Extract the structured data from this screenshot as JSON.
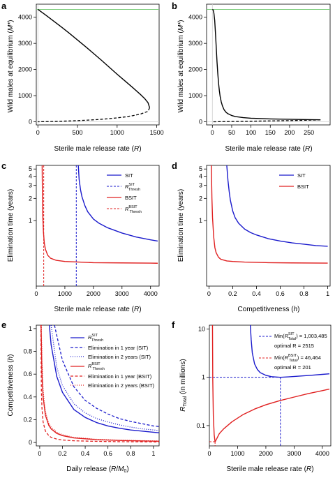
{
  "chart_data": [
    {
      "panel_label": "a",
      "type": "line",
      "xlabel": "Sterile male release rate (R)",
      "ylabel": "Wild males at equilibrium (M*)",
      "xlim": [
        -20,
        1530
      ],
      "ylim": [
        -120,
        4500
      ],
      "xticks": [
        0,
        500,
        1000,
        1500
      ],
      "yticks": [
        0,
        1000,
        2000,
        3000,
        4000
      ],
      "hline": {
        "y": 4300,
        "color": "#7ccc7c"
      },
      "series": [
        {
          "style": "solid",
          "color": "#000000",
          "x": [
            0,
            100,
            200,
            300,
            400,
            500,
            600,
            700,
            800,
            900,
            1000,
            1100,
            1200,
            1300,
            1350,
            1390,
            1410
          ],
          "y": [
            4300,
            4080,
            3850,
            3620,
            3380,
            3130,
            2880,
            2620,
            2360,
            2090,
            1820,
            1560,
            1300,
            1030,
            880,
            730,
            540
          ]
        },
        {
          "style": "dashed",
          "color": "#000000",
          "x": [
            1410,
            1390,
            1300,
            1200,
            1100,
            1000,
            900,
            800,
            700,
            600,
            500,
            400,
            300,
            200,
            100,
            0
          ],
          "y": [
            540,
            400,
            300,
            235,
            185,
            150,
            120,
            95,
            75,
            58,
            44,
            32,
            22,
            14,
            6,
            0
          ]
        }
      ]
    },
    {
      "panel_label": "b",
      "type": "line",
      "xlabel": "Sterile male release rate (R)",
      "ylabel": "Wild males at equilibrium (M*)",
      "xlim": [
        -15,
        305
      ],
      "ylim": [
        -120,
        4500
      ],
      "xticks": [
        0,
        50,
        100,
        150,
        200,
        250
      ],
      "yticks": [
        0,
        1000,
        2000,
        3000,
        4000
      ],
      "hline": {
        "y": 4300,
        "color": "#7ccc7c"
      },
      "series": [
        {
          "style": "solid",
          "color": "#000000",
          "x": [
            0,
            2,
            4,
            6,
            8,
            10,
            12,
            14,
            16,
            18,
            20,
            23,
            26,
            30,
            35,
            40,
            50,
            60,
            80,
            100,
            150,
            200,
            250,
            280
          ],
          "y": [
            4300,
            4280,
            4150,
            3880,
            3400,
            2850,
            2300,
            1850,
            1480,
            1200,
            980,
            760,
            610,
            470,
            370,
            310,
            240,
            200,
            160,
            135,
            110,
            95,
            82,
            75
          ]
        },
        {
          "style": "dashed",
          "color": "#000000",
          "x": [
            280,
            250,
            200,
            150,
            100,
            50,
            20,
            5,
            0
          ],
          "y": [
            75,
            60,
            45,
            33,
            22,
            12,
            5,
            1,
            0
          ]
        }
      ]
    },
    {
      "panel_label": "c",
      "type": "line",
      "xlabel": "Sterile male release rate (R)",
      "ylabel": "Elimination time (years)",
      "yscale": "log",
      "xlim": [
        0,
        4300
      ],
      "ylim": [
        0.13,
        5.6
      ],
      "xticks": [
        0,
        1000,
        2000,
        3000,
        4000
      ],
      "yticks": [
        1,
        2,
        3,
        4,
        5
      ],
      "legend": [
        "SIT",
        "R^SIT_Thresh",
        "BSIT",
        "R^BSIT_Thresh"
      ],
      "series": [
        {
          "name": "SIT",
          "style": "solid",
          "color": "#1a1acc",
          "x": [
            1470,
            1500,
            1550,
            1600,
            1700,
            1800,
            2000,
            2200,
            2500,
            3000,
            3500,
            4000,
            4250
          ],
          "y": [
            5.6,
            3.6,
            2.6,
            2.1,
            1.6,
            1.32,
            1.05,
            0.92,
            0.8,
            0.68,
            0.6,
            0.55,
            0.53
          ]
        },
        {
          "name": "BSIT",
          "style": "solid",
          "color": "#e02020",
          "x": [
            205,
            215,
            230,
            250,
            280,
            320,
            400,
            500,
            700,
            1000,
            1500,
            2000,
            3000,
            4000,
            4250
          ],
          "y": [
            5.6,
            2.2,
            1.1,
            0.7,
            0.5,
            0.41,
            0.34,
            0.31,
            0.29,
            0.28,
            0.275,
            0.27,
            0.268,
            0.266,
            0.265
          ]
        }
      ],
      "vlines": [
        {
          "name": "R^SIT_Thresh",
          "x": 1400,
          "color": "#1a1acc"
        },
        {
          "name": "R^BSIT_Thresh",
          "x": 260,
          "color": "#e02020"
        }
      ]
    },
    {
      "panel_label": "d",
      "type": "line",
      "xlabel": "Competitiveness (h)",
      "ylabel": "Elimination time (years)",
      "yscale": "log",
      "xlim": [
        -0.02,
        1.02
      ],
      "ylim": [
        0.13,
        5.6
      ],
      "xticks": [
        0,
        0.2,
        0.4,
        0.6,
        0.8,
        1
      ],
      "yticks": [
        1,
        2,
        3,
        4,
        5
      ],
      "legend": [
        "SIT",
        "BSIT"
      ],
      "series": [
        {
          "name": "SIT",
          "style": "solid",
          "color": "#1a1acc",
          "x": [
            0.15,
            0.16,
            0.17,
            0.18,
            0.2,
            0.22,
            0.25,
            0.3,
            0.35,
            0.4,
            0.5,
            0.6,
            0.7,
            0.8,
            0.9,
            1.0
          ],
          "y": [
            5.6,
            3.5,
            2.5,
            1.9,
            1.35,
            1.1,
            0.92,
            0.77,
            0.69,
            0.64,
            0.57,
            0.53,
            0.5,
            0.48,
            0.46,
            0.45
          ]
        },
        {
          "name": "BSIT",
          "style": "solid",
          "color": "#e02020",
          "x": [
            0.02,
            0.025,
            0.03,
            0.04,
            0.05,
            0.06,
            0.08,
            0.1,
            0.15,
            0.2,
            0.3,
            0.5,
            0.7,
            1.0
          ],
          "y": [
            5.6,
            2.0,
            1.1,
            0.6,
            0.43,
            0.37,
            0.32,
            0.3,
            0.285,
            0.28,
            0.275,
            0.27,
            0.268,
            0.266
          ]
        }
      ]
    },
    {
      "panel_label": "e",
      "type": "line",
      "xlabel": "Daily release (R/M0)",
      "ylabel": "Competitiveness (h)",
      "xlim": [
        -0.03,
        1.05
      ],
      "ylim": [
        -0.03,
        1.03
      ],
      "xticks": [
        0,
        0.2,
        0.4,
        0.6,
        0.8,
        1
      ],
      "yticks": [
        0,
        0.2,
        0.4,
        0.6,
        0.8,
        1
      ],
      "legend": [
        "R^SIT_Thresh",
        "Elimination in 1 year (SIT)",
        "Elimination in 2 years (SIT)",
        "R^BSIT_Thresh",
        "Elimination in 1 year (BSIT)",
        "Elimination in 2 years (BSIT)"
      ],
      "series": [
        {
          "name": "R^SIT_Thresh",
          "style": "solid",
          "color": "#1a1acc",
          "x": [
            0.085,
            0.1,
            0.15,
            0.2,
            0.3,
            0.4,
            0.5,
            0.6,
            0.7,
            0.8,
            0.9,
            1.0,
            1.05
          ],
          "y": [
            1.03,
            0.86,
            0.58,
            0.44,
            0.29,
            0.22,
            0.175,
            0.145,
            0.125,
            0.11,
            0.1,
            0.09,
            0.085
          ]
        },
        {
          "name": "Elimination in 1 year (SIT)",
          "style": "dashed",
          "color": "#1a1acc",
          "x": [
            0.13,
            0.15,
            0.2,
            0.3,
            0.4,
            0.5,
            0.6,
            0.7,
            0.8,
            0.9,
            1.0,
            1.05
          ],
          "y": [
            1.03,
            0.94,
            0.72,
            0.49,
            0.37,
            0.3,
            0.25,
            0.21,
            0.185,
            0.165,
            0.145,
            0.14
          ]
        },
        {
          "name": "Elimination in 2 years (SIT)",
          "style": "dotted",
          "color": "#1a1acc",
          "x": [
            0.1,
            0.15,
            0.2,
            0.3,
            0.4,
            0.5,
            0.6,
            0.7,
            0.8,
            0.9,
            1.0,
            1.05
          ],
          "y": [
            1.03,
            0.66,
            0.5,
            0.34,
            0.26,
            0.21,
            0.18,
            0.155,
            0.135,
            0.12,
            0.11,
            0.105
          ]
        },
        {
          "name": "R^BSIT_Thresh",
          "style": "solid",
          "color": "#e02020",
          "x": [
            0.012,
            0.02,
            0.03,
            0.05,
            0.08,
            0.1,
            0.15,
            0.2,
            0.3,
            0.5,
            0.7,
            1.0,
            1.05
          ],
          "y": [
            1.03,
            0.6,
            0.4,
            0.24,
            0.15,
            0.12,
            0.08,
            0.06,
            0.04,
            0.025,
            0.018,
            0.012,
            0.011
          ]
        },
        {
          "name": "Elimination in 1 year (BSIT)",
          "style": "dashed",
          "color": "#e02020",
          "x": [
            0.01,
            0.015,
            0.02,
            0.03,
            0.05,
            0.08,
            0.1,
            0.15,
            0.2,
            0.3,
            0.5,
            0.7,
            1.0,
            1.05
          ],
          "y": [
            1.03,
            0.45,
            0.3,
            0.18,
            0.1,
            0.06,
            0.045,
            0.03,
            0.022,
            0.015,
            0.01,
            0.007,
            0.005,
            0.005
          ]
        },
        {
          "name": "Elimination in 2 years (BSIT)",
          "style": "dotted",
          "color": "#e02020",
          "x": [
            0.014,
            0.02,
            0.03,
            0.05,
            0.08,
            0.1,
            0.15,
            0.2,
            0.3,
            0.5,
            0.7,
            1.0,
            1.05
          ],
          "y": [
            1.03,
            0.7,
            0.45,
            0.27,
            0.17,
            0.135,
            0.09,
            0.068,
            0.045,
            0.028,
            0.02,
            0.014,
            0.013
          ]
        }
      ]
    },
    {
      "panel_label": "f",
      "type": "line",
      "xlabel": "Sterile male release rate (R)",
      "ylabel": "R_Total (in millions)",
      "yscale": "log",
      "xlim": [
        0,
        4300
      ],
      "ylim": [
        0.038,
        12
      ],
      "xticks": [
        0,
        1000,
        2000,
        3000,
        4000
      ],
      "yticks": [
        0.1,
        1,
        10
      ],
      "legend": [
        "Min(R^SIT_Total) = 1,003,485",
        "optimal R = 2515",
        "Min(R^BSIT_Total) = 46,464",
        "optimal R = 201"
      ],
      "series": [
        {
          "name": "SIT",
          "style": "solid",
          "color": "#1a1acc",
          "x": [
            1450,
            1480,
            1520,
            1600,
            1700,
            1800,
            2000,
            2200,
            2515,
            2800,
            3200,
            3600,
            4000,
            4250
          ],
          "y": [
            12,
            6.0,
            3.2,
            1.9,
            1.45,
            1.25,
            1.1,
            1.03,
            1.0,
            1.02,
            1.06,
            1.1,
            1.15,
            1.18
          ]
        },
        {
          "name": "BSIT",
          "style": "solid",
          "color": "#e02020",
          "x": [
            110,
            120,
            140,
            170,
            201,
            250,
            350,
            500,
            800,
            1200,
            1600,
            2000,
            2500,
            3000,
            3500,
            4000,
            4250
          ],
          "y": [
            12,
            0.9,
            0.16,
            0.065,
            0.046,
            0.052,
            0.068,
            0.085,
            0.12,
            0.17,
            0.22,
            0.27,
            0.33,
            0.39,
            0.46,
            0.53,
            0.57
          ]
        }
      ],
      "guides": [
        {
          "color": "#1a1acc",
          "x": 2515,
          "y": 1.003485
        },
        {
          "color": "#e02020",
          "x": 201,
          "y": 0.046464
        }
      ]
    }
  ]
}
